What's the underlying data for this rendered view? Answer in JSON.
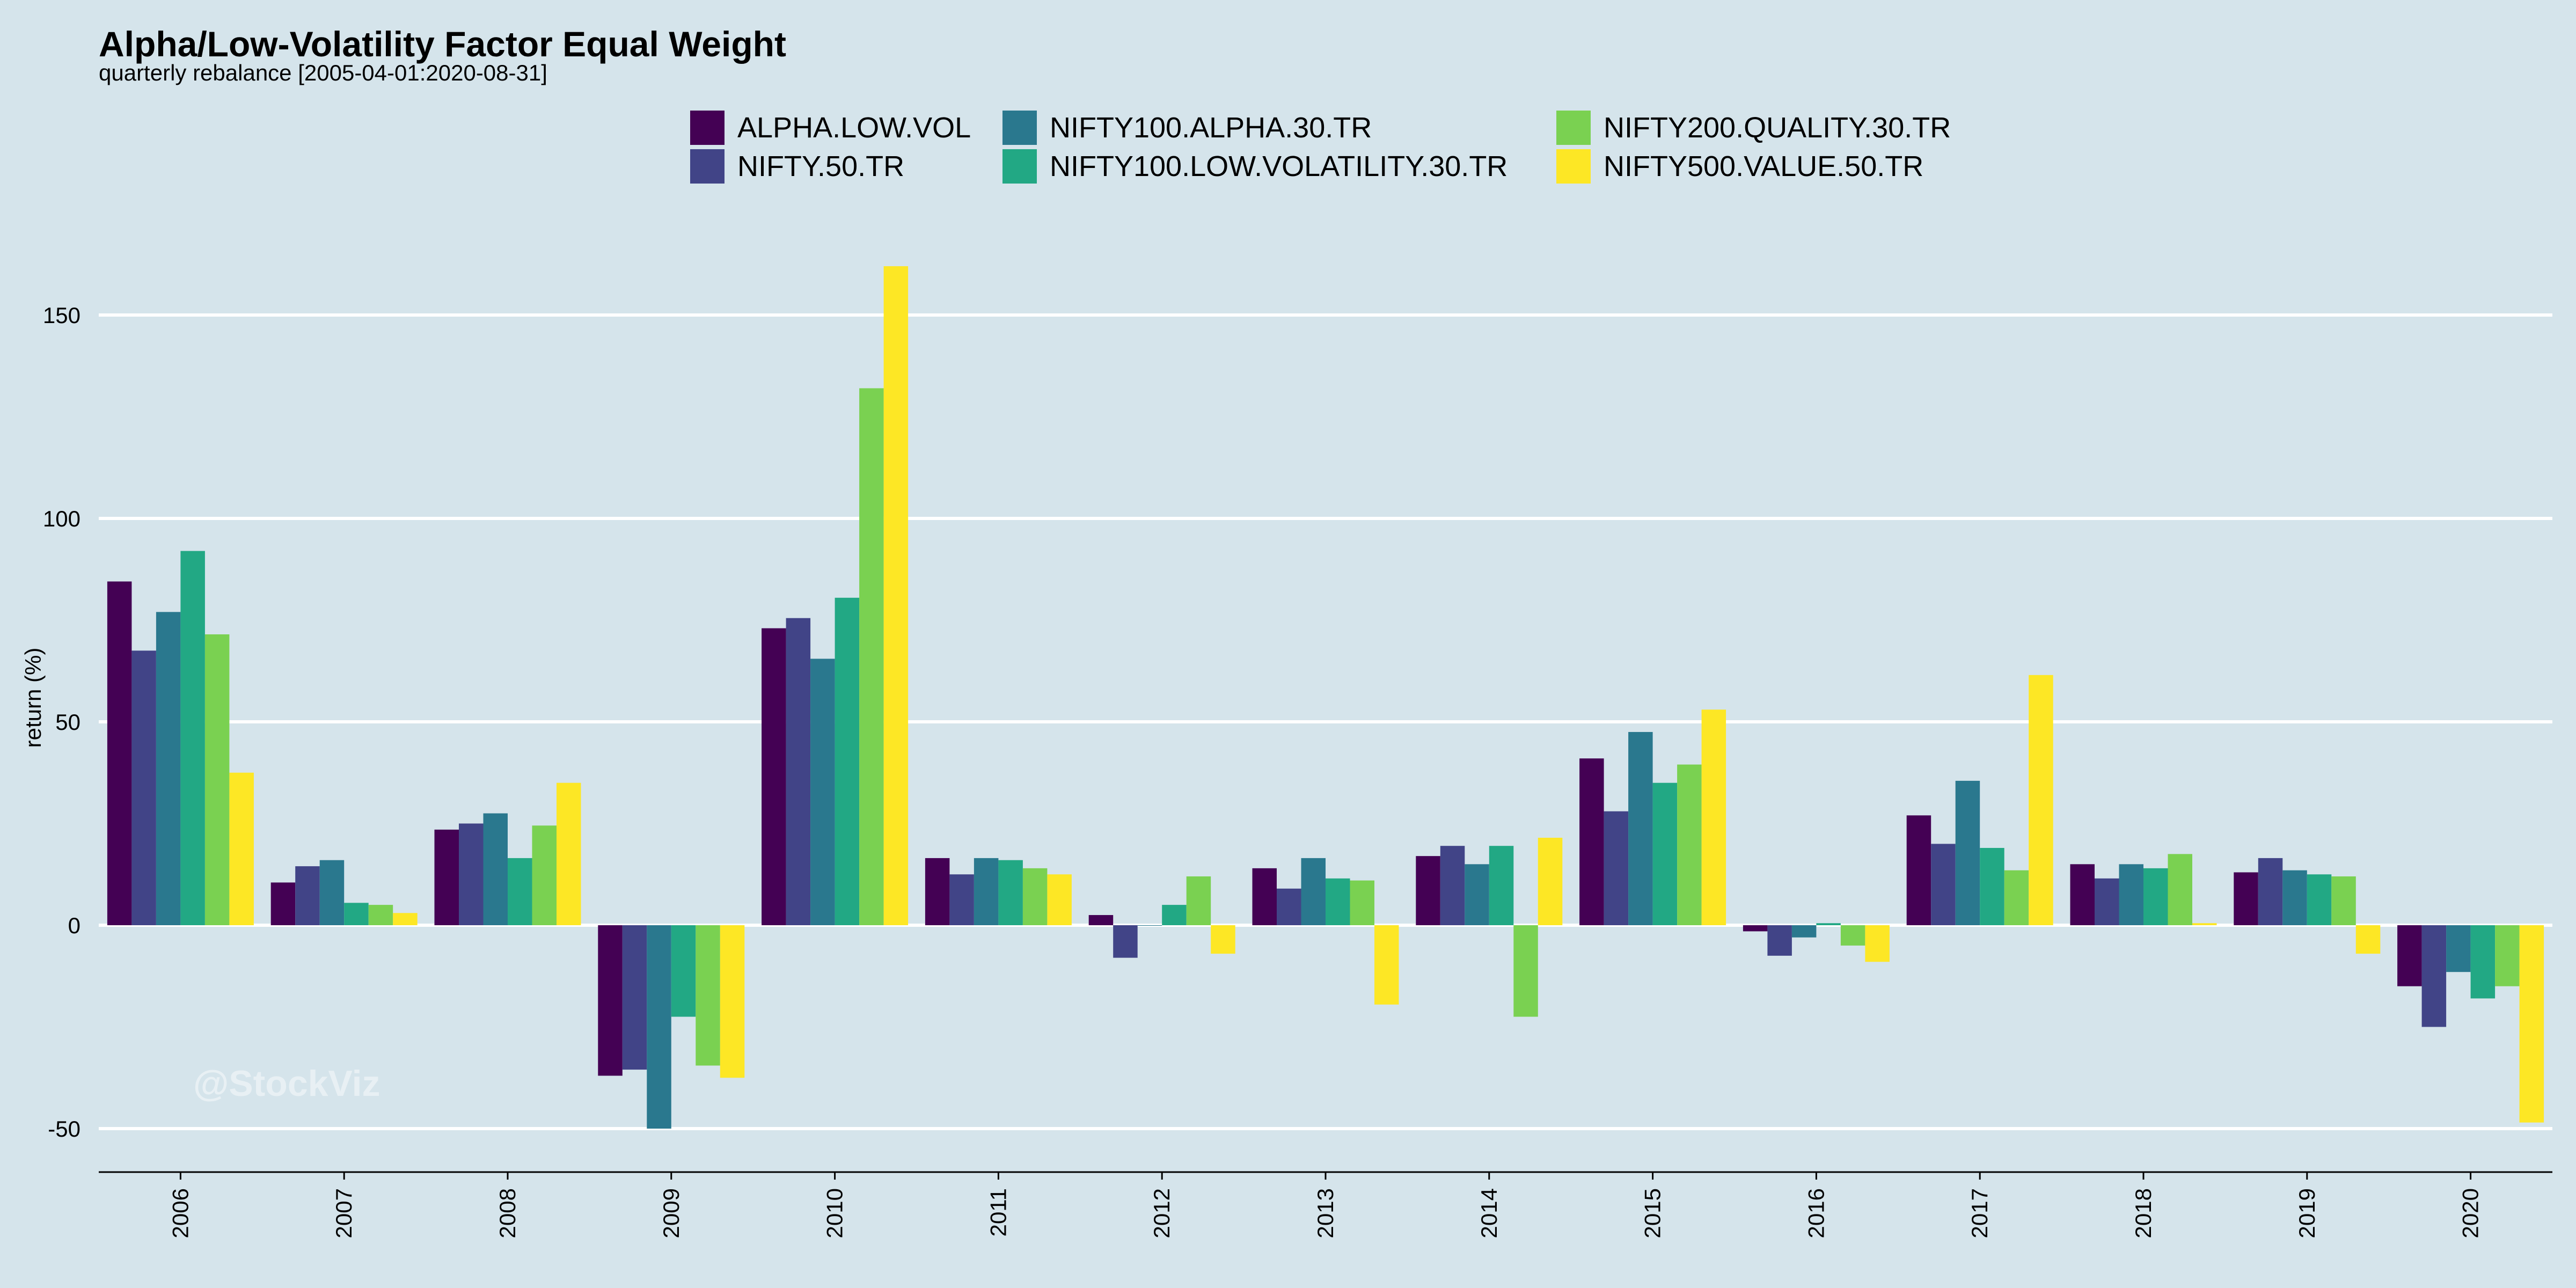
{
  "title": "Alpha/Low-Volatility Factor Equal Weight",
  "subtitle": "quarterly rebalance [2005-04-01:2020-08-31]",
  "watermark": "@StockViz",
  "chart_data": {
    "type": "bar",
    "title": "Alpha/Low-Volatility Factor Equal Weight",
    "subtitle": "quarterly rebalance [2005-04-01:2020-08-31]",
    "xlabel": "",
    "ylabel": "return (%)",
    "ylim": [
      -60,
      170
    ],
    "yticks": [
      -50,
      0,
      50,
      100,
      150
    ],
    "grid": "horizontal",
    "legend_position": "top",
    "categories": [
      "2006",
      "2007",
      "2008",
      "2009",
      "2010",
      "2011",
      "2012",
      "2013",
      "2014",
      "2015",
      "2016",
      "2017",
      "2018",
      "2019",
      "2020"
    ],
    "series": [
      {
        "name": "ALPHA.LOW.VOL",
        "color": "#440154",
        "values": [
          84.5,
          10.5,
          23.5,
          -37,
          73,
          16.5,
          2.5,
          14,
          17,
          41,
          -1.5,
          27,
          15,
          13,
          -15
        ]
      },
      {
        "name": "NIFTY.50.TR",
        "color": "#414487",
        "values": [
          67.5,
          14.5,
          25,
          -35.5,
          75.5,
          12.5,
          -8,
          9,
          19.5,
          28,
          -7.5,
          20,
          11.5,
          16.5,
          -25
        ]
      },
      {
        "name": "NIFTY100.ALPHA.30.TR",
        "color": "#2a788e",
        "values": [
          77,
          16,
          27.5,
          -50,
          65.5,
          16.5,
          0,
          16.5,
          15,
          47.5,
          -3,
          35.5,
          15,
          13.5,
          -11.5
        ]
      },
      {
        "name": "NIFTY100.LOW.VOLATILITY.30.TR",
        "color": "#22a884",
        "values": [
          92,
          5.5,
          16.5,
          -22.5,
          80.5,
          16,
          5,
          11.5,
          19.5,
          35,
          0.5,
          19,
          14,
          12.5,
          -18
        ]
      },
      {
        "name": "NIFTY200.QUALITY.30.TR",
        "color": "#7ad151",
        "values": [
          71.5,
          5,
          24.5,
          -34.5,
          132,
          14,
          12,
          11,
          -22.5,
          39.5,
          -5,
          13.5,
          17.5,
          12,
          -15
        ]
      },
      {
        "name": "NIFTY500.VALUE.50.TR",
        "color": "#fde725",
        "values": [
          37.5,
          3,
          35,
          -37.5,
          162,
          12.5,
          -7,
          -19.5,
          21.5,
          53,
          -9,
          61.5,
          0.5,
          -7,
          -48.5
        ]
      }
    ]
  }
}
